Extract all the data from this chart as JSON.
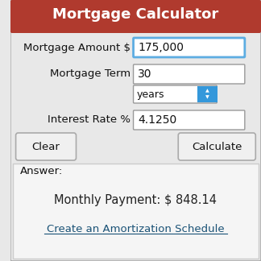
{
  "title": "Mortgage Calculator",
  "title_bg": "#b03a2e",
  "title_color": "#ffffff",
  "title_fontsize": 13,
  "bg_color": "#e8e8e8",
  "outer_border_color": "#aaaaaa",
  "label1": "Mortgage Amount $",
  "value1": "175,000",
  "label2": "Mortgage Term",
  "value2": "30",
  "dropdown_label": "years",
  "label3": "Interest Rate %",
  "value3": "4.1250",
  "btn_clear": "Clear",
  "btn_calculate": "Calculate",
  "answer_label": "Answer:",
  "monthly_payment": "Monthly Payment: $ 848.14",
  "link_text": "Create an Amortization Schedule",
  "link_color": "#1a5276",
  "input_border_active": "#5dade2",
  "input_border_normal": "#999999",
  "input_bg": "#ffffff",
  "answer_bg": "#f5f5f5",
  "answer_border": "#cccccc",
  "btn_bg": "#f0f0f0",
  "btn_border": "#aaaaaa",
  "dropdown_blue": "#3498db",
  "figsize": [
    3.24,
    3.24
  ],
  "dpi": 100
}
